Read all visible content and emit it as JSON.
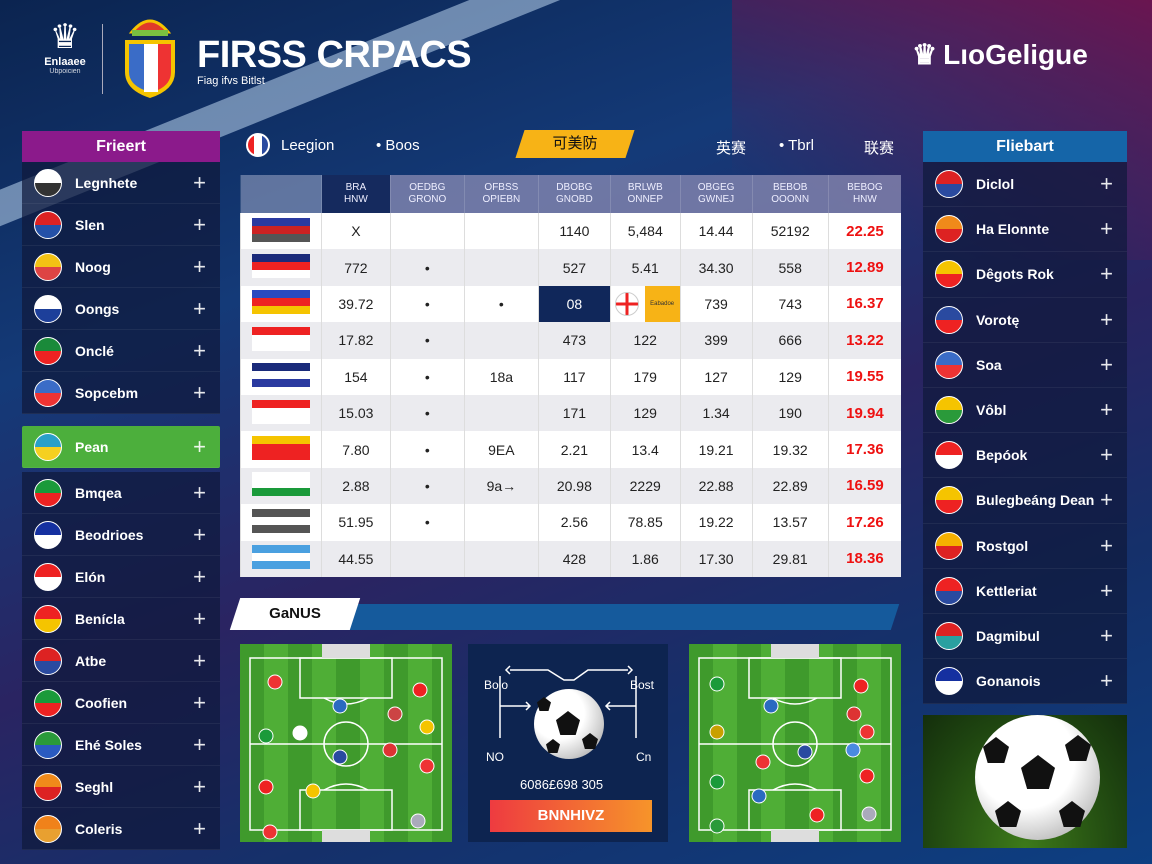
{
  "header": {
    "logo_text": "Enlaaee",
    "logo_sub": "Ubpoicien",
    "title": "FIRSS CRPACS",
    "subtitle": "Fiag ifvs Bitlst",
    "brand_right": "LıoGeligue"
  },
  "left_sidebar": {
    "title": "Frieert",
    "title_color": "#8b1a8b",
    "items": [
      {
        "label": "Legnhete",
        "colors": [
          "#ffffff",
          "#333333"
        ]
      },
      {
        "label": "Slen",
        "colors": [
          "#d22",
          "#2451a8"
        ]
      },
      {
        "label": "Noog",
        "colors": [
          "#f3c214",
          "#d44"
        ]
      },
      {
        "label": "Oongs",
        "colors": [
          "#fff",
          "#1d3f9a"
        ]
      },
      {
        "label": "Onclé",
        "colors": [
          "#1a8a3a",
          "#e22"
        ]
      },
      {
        "label": "Sopcebm",
        "colors": [
          "#3a6cc7",
          "#e33"
        ]
      },
      {
        "label": "Pean",
        "colors": [
          "#29a0c8",
          "#f5d020"
        ],
        "active": true
      },
      {
        "label": "Bmqea",
        "colors": [
          "#1a9a3a",
          "#e22"
        ]
      },
      {
        "label": "Beodrioes",
        "colors": [
          "#1530a0",
          "#fff"
        ]
      },
      {
        "label": "Elón",
        "colors": [
          "#e22",
          "#fff"
        ]
      },
      {
        "label": "Benícla",
        "colors": [
          "#e22",
          "#f5c400"
        ]
      },
      {
        "label": "Atbe",
        "colors": [
          "#d22",
          "#2a4aa0"
        ]
      },
      {
        "label": "Coofien",
        "colors": [
          "#1a9a3a",
          "#e22"
        ]
      },
      {
        "label": "Ehé Soles",
        "colors": [
          "#2a9a3a",
          "#2a5ac0"
        ]
      },
      {
        "label": "Seghl",
        "colors": [
          "#f08a1a",
          "#d22"
        ]
      },
      {
        "label": "Coleris",
        "colors": [
          "#f0821a",
          "#e8a030"
        ]
      }
    ]
  },
  "right_sidebar": {
    "title": "Fliebart",
    "title_color": "#1565a8",
    "items": [
      {
        "label": "Diclol",
        "colors": [
          "#d22",
          "#2a4aa0"
        ]
      },
      {
        "label": "Ha Elonnte",
        "colors": [
          "#f08a1a",
          "#d22"
        ]
      },
      {
        "label": "Dêgots Rok",
        "colors": [
          "#f5c400",
          "#e22"
        ]
      },
      {
        "label": "Vorotę",
        "colors": [
          "#2a4aa0",
          "#e22"
        ]
      },
      {
        "label": "Soa",
        "colors": [
          "#3a6cc7",
          "#e33"
        ]
      },
      {
        "label": "Vôbl",
        "colors": [
          "#f5c400",
          "#2a9a3a"
        ]
      },
      {
        "label": "Bepóok",
        "colors": [
          "#e22",
          "#fff"
        ]
      },
      {
        "label": "Bulegbeáng Dean",
        "colors": [
          "#f5c400",
          "#e22"
        ]
      },
      {
        "label": "Rostgol",
        "colors": [
          "#f5b000",
          "#d22"
        ]
      },
      {
        "label": "Kettleriat",
        "colors": [
          "#e22",
          "#2a4aa0"
        ]
      },
      {
        "label": "Dagmibul",
        "colors": [
          "#d22",
          "#2aa0a0"
        ]
      },
      {
        "label": "Gonanois",
        "colors": [
          "#1530a0",
          "#fff"
        ]
      }
    ]
  },
  "toolbar": {
    "league": "Leegion",
    "boos": "• Boos",
    "badge": "可美防",
    "tab1": "英赛",
    "tab2": "• Tbrl",
    "tab3": "联赛"
  },
  "table": {
    "headers": [
      "BRA\nHNW",
      "OEDBG\nGRONO",
      "OFBSS\nOPIEBN",
      "DBOBG\nGNOBD",
      "BRLWB\nONNEP",
      "OBGEG\nGWNEJ",
      "BEBOB\nOOONN",
      "BEBOG\nHNW"
    ],
    "rows": [
      {
        "flag": [
          "#2a3aa0",
          "#c22",
          "#555"
        ],
        "cells": [
          "X",
          "",
          "",
          "1140",
          "5,484",
          "14.44",
          "52192",
          "22.25"
        ]
      },
      {
        "flag": [
          "#1a2a7a",
          "#e22",
          "#fff"
        ],
        "cells": [
          "772",
          "•",
          "",
          "527",
          "5.41",
          "34.30",
          "558",
          "12.89"
        ]
      },
      {
        "flag": [
          "#2a4ac0",
          "#e22",
          "#f5c400"
        ],
        "cells": [
          "39.72",
          "•",
          "•",
          "08",
          "",
          "739",
          "743",
          "16.37"
        ],
        "highlight_label": "Eabadoe"
      },
      {
        "flag": [
          "#e22",
          "#fff",
          "#fff"
        ],
        "cells": [
          "17.82",
          "•",
          "",
          "473",
          "122",
          "399",
          "666",
          "13.22"
        ]
      },
      {
        "flag": [
          "#1a2a7a",
          "#fff",
          "#2a3aa0"
        ],
        "cells": [
          "154",
          "•",
          "18a",
          "117",
          "179",
          "127",
          "129",
          "19.55"
        ]
      },
      {
        "flag": [
          "#e22",
          "#fff",
          "#fff"
        ],
        "cells": [
          "15.03",
          "•",
          "",
          "171",
          "129",
          "1.34",
          "190",
          "19.94"
        ]
      },
      {
        "flag": [
          "#f5c400",
          "#e22",
          "#e22"
        ],
        "cells": [
          "7.80",
          "•",
          "9EA",
          "2.21",
          "13.4",
          "19.21",
          "19.32",
          "17.36"
        ]
      },
      {
        "flag": [
          "#fff",
          "#fff",
          "#1a9a3a"
        ],
        "cells": [
          "2.88",
          "•",
          "9a→",
          "20.98",
          "2229",
          "22.88",
          "22.89",
          "16.59"
        ]
      },
      {
        "flag": [
          "#555",
          "#fff",
          "#555"
        ],
        "cells": [
          "51.95",
          "•",
          "",
          "2.56",
          "78.85",
          "19.22",
          "13.57",
          "17.26"
        ]
      },
      {
        "flag": [
          "#4aa0e0",
          "#fff",
          "#4aa0e0"
        ],
        "cells": [
          "44.55",
          "",
          "",
          "428",
          "1.86",
          "17.30",
          "29.81",
          "18.36"
        ]
      }
    ]
  },
  "games": {
    "title": "GaNUS",
    "left_top": "Bolo",
    "right_top": "Bost",
    "left_bottom": "NO",
    "right_bottom": "Cn",
    "score": "6086£698 305",
    "button": "BNNHIVZ"
  }
}
